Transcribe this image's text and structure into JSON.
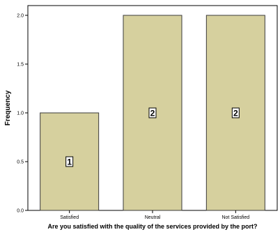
{
  "chart_data": {
    "type": "bar",
    "title": "",
    "categories": [
      "Satisfied",
      "Neutral",
      "Not Satisfied"
    ],
    "values": [
      1,
      2,
      2
    ],
    "data_labels": [
      "1",
      "2",
      "2"
    ],
    "xlabel": "Are you satisfied with the quality of the services provided by the port?",
    "ylabel": "Frequency",
    "ylim": [
      0,
      2.1
    ],
    "yticks": [
      "0.0",
      "0.5",
      "1.0",
      "1.5",
      "2.0"
    ],
    "ytick_values": [
      0,
      0.5,
      1.0,
      1.5,
      2.0
    ],
    "grid": false,
    "legend": "none",
    "bar_color": "#d6d09e",
    "bar_edge_color": "#3a3a3a",
    "background": "#ffffff"
  }
}
